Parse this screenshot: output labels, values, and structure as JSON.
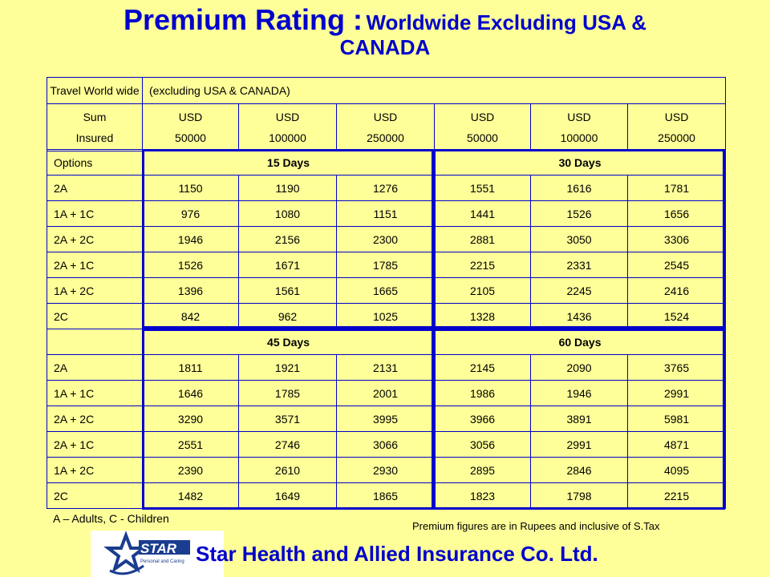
{
  "title": {
    "main": "Premium Rating :",
    "sub": "Worldwide Excluding USA &",
    "line2": "CANADA"
  },
  "header": {
    "row1_left": "Travel World wide",
    "row1_right": "(excluding USA & CANADA)",
    "sum_insured": [
      "Sum",
      "Insured"
    ],
    "amounts": [
      [
        "USD",
        "50000"
      ],
      [
        "USD",
        "100000"
      ],
      [
        "USD",
        "250000"
      ],
      [
        "USD",
        "50000"
      ],
      [
        "USD",
        "100000"
      ],
      [
        "USD",
        "250000"
      ]
    ]
  },
  "section1": {
    "options_label": "Options",
    "period_a": "15 Days",
    "period_b": "30 Days",
    "rows": [
      {
        "option": "2A",
        "values": [
          "1150",
          "1190",
          "1276",
          "1551",
          "1616",
          "1781"
        ]
      },
      {
        "option": "1A + 1C",
        "values": [
          "976",
          "1080",
          "1151",
          "1441",
          "1526",
          "1656"
        ]
      },
      {
        "option": "2A + 2C",
        "values": [
          "1946",
          "2156",
          "2300",
          "2881",
          "3050",
          "3306"
        ]
      },
      {
        "option": "2A + 1C",
        "values": [
          "1526",
          "1671",
          "1785",
          "2215",
          "2331",
          "2545"
        ]
      },
      {
        "option": "1A + 2C",
        "values": [
          "1396",
          "1561",
          "1665",
          "2105",
          "2245",
          "2416"
        ]
      },
      {
        "option": "2C",
        "values": [
          "842",
          "962",
          "1025",
          "1328",
          "1436",
          "1524"
        ]
      }
    ]
  },
  "section2": {
    "period_a": "45 Days",
    "period_b": "60 Days",
    "rows": [
      {
        "option": "2A",
        "values": [
          "1811",
          "1921",
          "2131",
          "2145",
          "2090",
          "3765"
        ]
      },
      {
        "option": "1A + 1C",
        "values": [
          "1646",
          "1785",
          "2001",
          "1986",
          "1946",
          "2991"
        ]
      },
      {
        "option": "2A + 2C",
        "values": [
          "3290",
          "3571",
          "3995",
          "3966",
          "3891",
          "5981"
        ]
      },
      {
        "option": "2A + 1C",
        "values": [
          "2551",
          "2746",
          "3066",
          "3056",
          "2991",
          "4871"
        ]
      },
      {
        "option": "1A + 2C",
        "values": [
          "2390",
          "2610",
          "2930",
          "2895",
          "2846",
          "4095"
        ]
      },
      {
        "option": "2C",
        "values": [
          "1482",
          "1649",
          "1865",
          "1823",
          "1798",
          "2215"
        ]
      }
    ]
  },
  "footnote_left": "A – Adults, C - Children",
  "footnote_right": "Premium figures are in Rupees and inclusive of S.Tax",
  "logo": {
    "text": "STAR",
    "tagline": "Personal and Caring"
  },
  "company": "Star Health and Allied Insurance Co. Ltd.",
  "colors": {
    "background": "#FFFF99",
    "accent": "#0000CC"
  }
}
